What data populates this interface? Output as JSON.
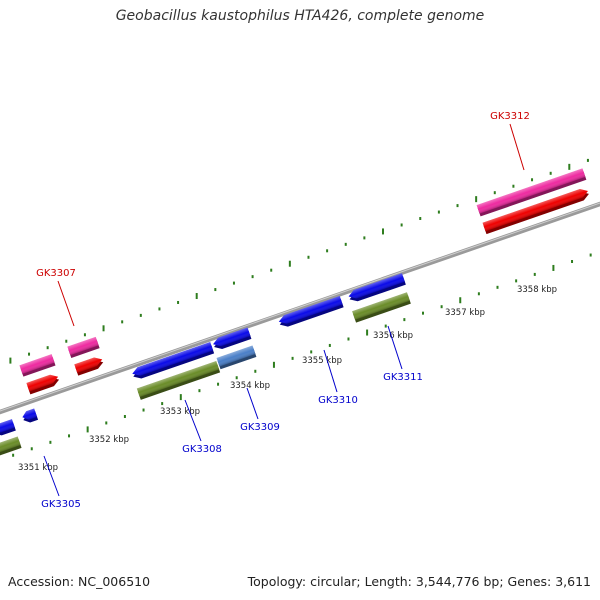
{
  "title": "Geobacillus kaustophilus HTA426, complete genome",
  "footer": {
    "accession": "Accession: NC_006510",
    "summary": "Topology: circular; Length: 3,544,776 bp; Genes: 3,611"
  },
  "colors": {
    "backbone": "#8a8a8a",
    "tick": "#2e7d1e",
    "forward_cds": "#ee2aa0",
    "forward_gene": "#ee0000",
    "reverse_cds": "#0a0ae8",
    "reverse_gene": "#6a8c28",
    "reverse_cds_alt": "#4a7fc8",
    "forward_label": "#cc0000",
    "reverse_label": "#0000cc"
  },
  "scale": {
    "ticks_kbp": [
      3351,
      3352,
      3353,
      3354,
      3355,
      3356,
      3357,
      3358
    ],
    "tick_labels": [
      "3351 kbp",
      "3352 kbp",
      "3353 kbp",
      "3354 kbp",
      "3355 kbp",
      "3356 kbp",
      "3357 kbp",
      "3358 kbp"
    ]
  },
  "gene_labels": {
    "forward": [
      "GK3307",
      "GK3312"
    ],
    "reverse": [
      "GK3305",
      "GK3308",
      "GK3309",
      "GK3310",
      "GK3311"
    ]
  }
}
